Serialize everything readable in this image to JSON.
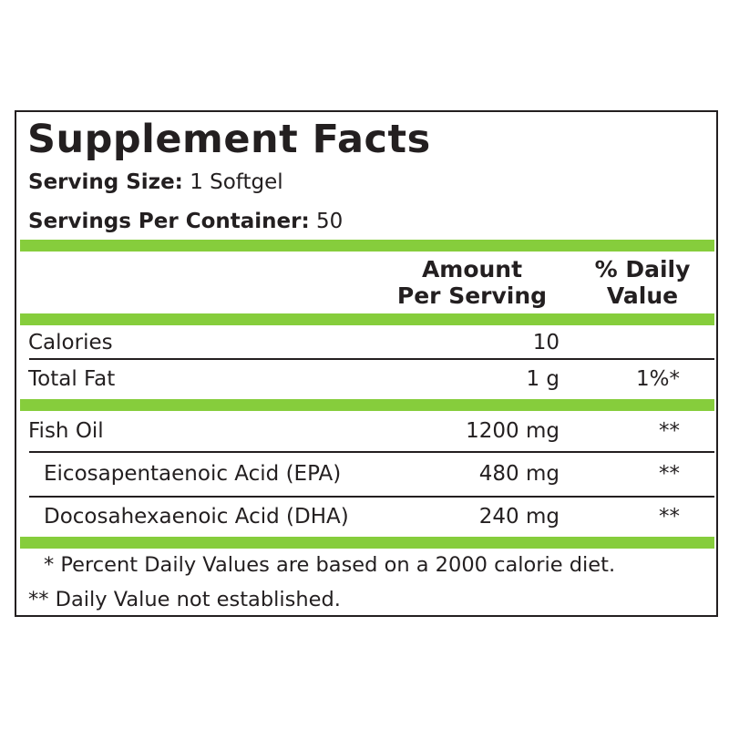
{
  "title": "Supplement Facts",
  "serving_size": {
    "label": "Serving Size:",
    "value": "1 Softgel"
  },
  "servings_per_container": {
    "label": "Servings Per Container:",
    "value": "50"
  },
  "header": {
    "amount_line1": "Amount",
    "amount_line2": "Per Serving",
    "dv_line1": "% Daily",
    "dv_line2": "Value"
  },
  "rows": [
    {
      "name": "Calories",
      "amount": "10",
      "dv": ""
    },
    {
      "name": "Total Fat",
      "amount": "1 g",
      "dv": "1%*"
    },
    {
      "name": "Fish Oil",
      "amount": "1200 mg",
      "dv": "**"
    },
    {
      "name": "Eicosapentaenoic Acid (EPA)",
      "amount": "480 mg",
      "dv": "**"
    },
    {
      "name": "Docosahexaenoic Acid (DHA)",
      "amount": "240 mg",
      "dv": "**"
    }
  ],
  "footnotes": [
    "* Percent Daily Values are based on a 2000 calorie diet.",
    "** Daily Value not established."
  ],
  "colors": {
    "accent_green": "#86cd3c",
    "text": "#231f20"
  }
}
